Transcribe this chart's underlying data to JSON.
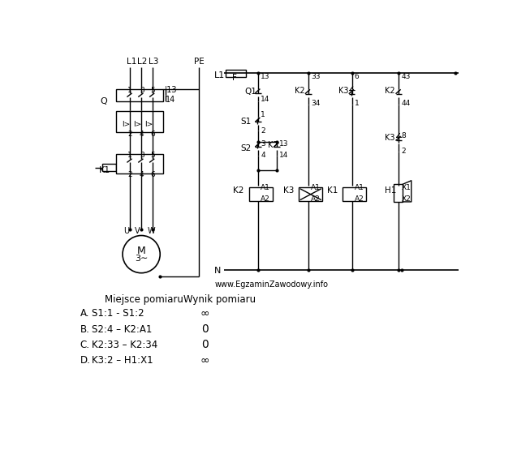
{
  "website": "www.EgzaminZawodowy.info",
  "table_header_left": "Miejsce pomiaru",
  "table_header_right": "Wynik pomiaru",
  "rows": [
    {
      "letter": "A.",
      "measurement": "S1:1 - S1:2",
      "result": "∞"
    },
    {
      "letter": "B.",
      "measurement": "S2:4 – K2:A1",
      "result": "0"
    },
    {
      "letter": "C.",
      "measurement": "K2:33 – K2:34",
      "result": "0"
    },
    {
      "letter": "D.",
      "measurement": "K3:2 – H1:X1",
      "result": "∞"
    }
  ],
  "bg_color": "#ffffff",
  "text_color": "#000000",
  "line_color": "#000000"
}
